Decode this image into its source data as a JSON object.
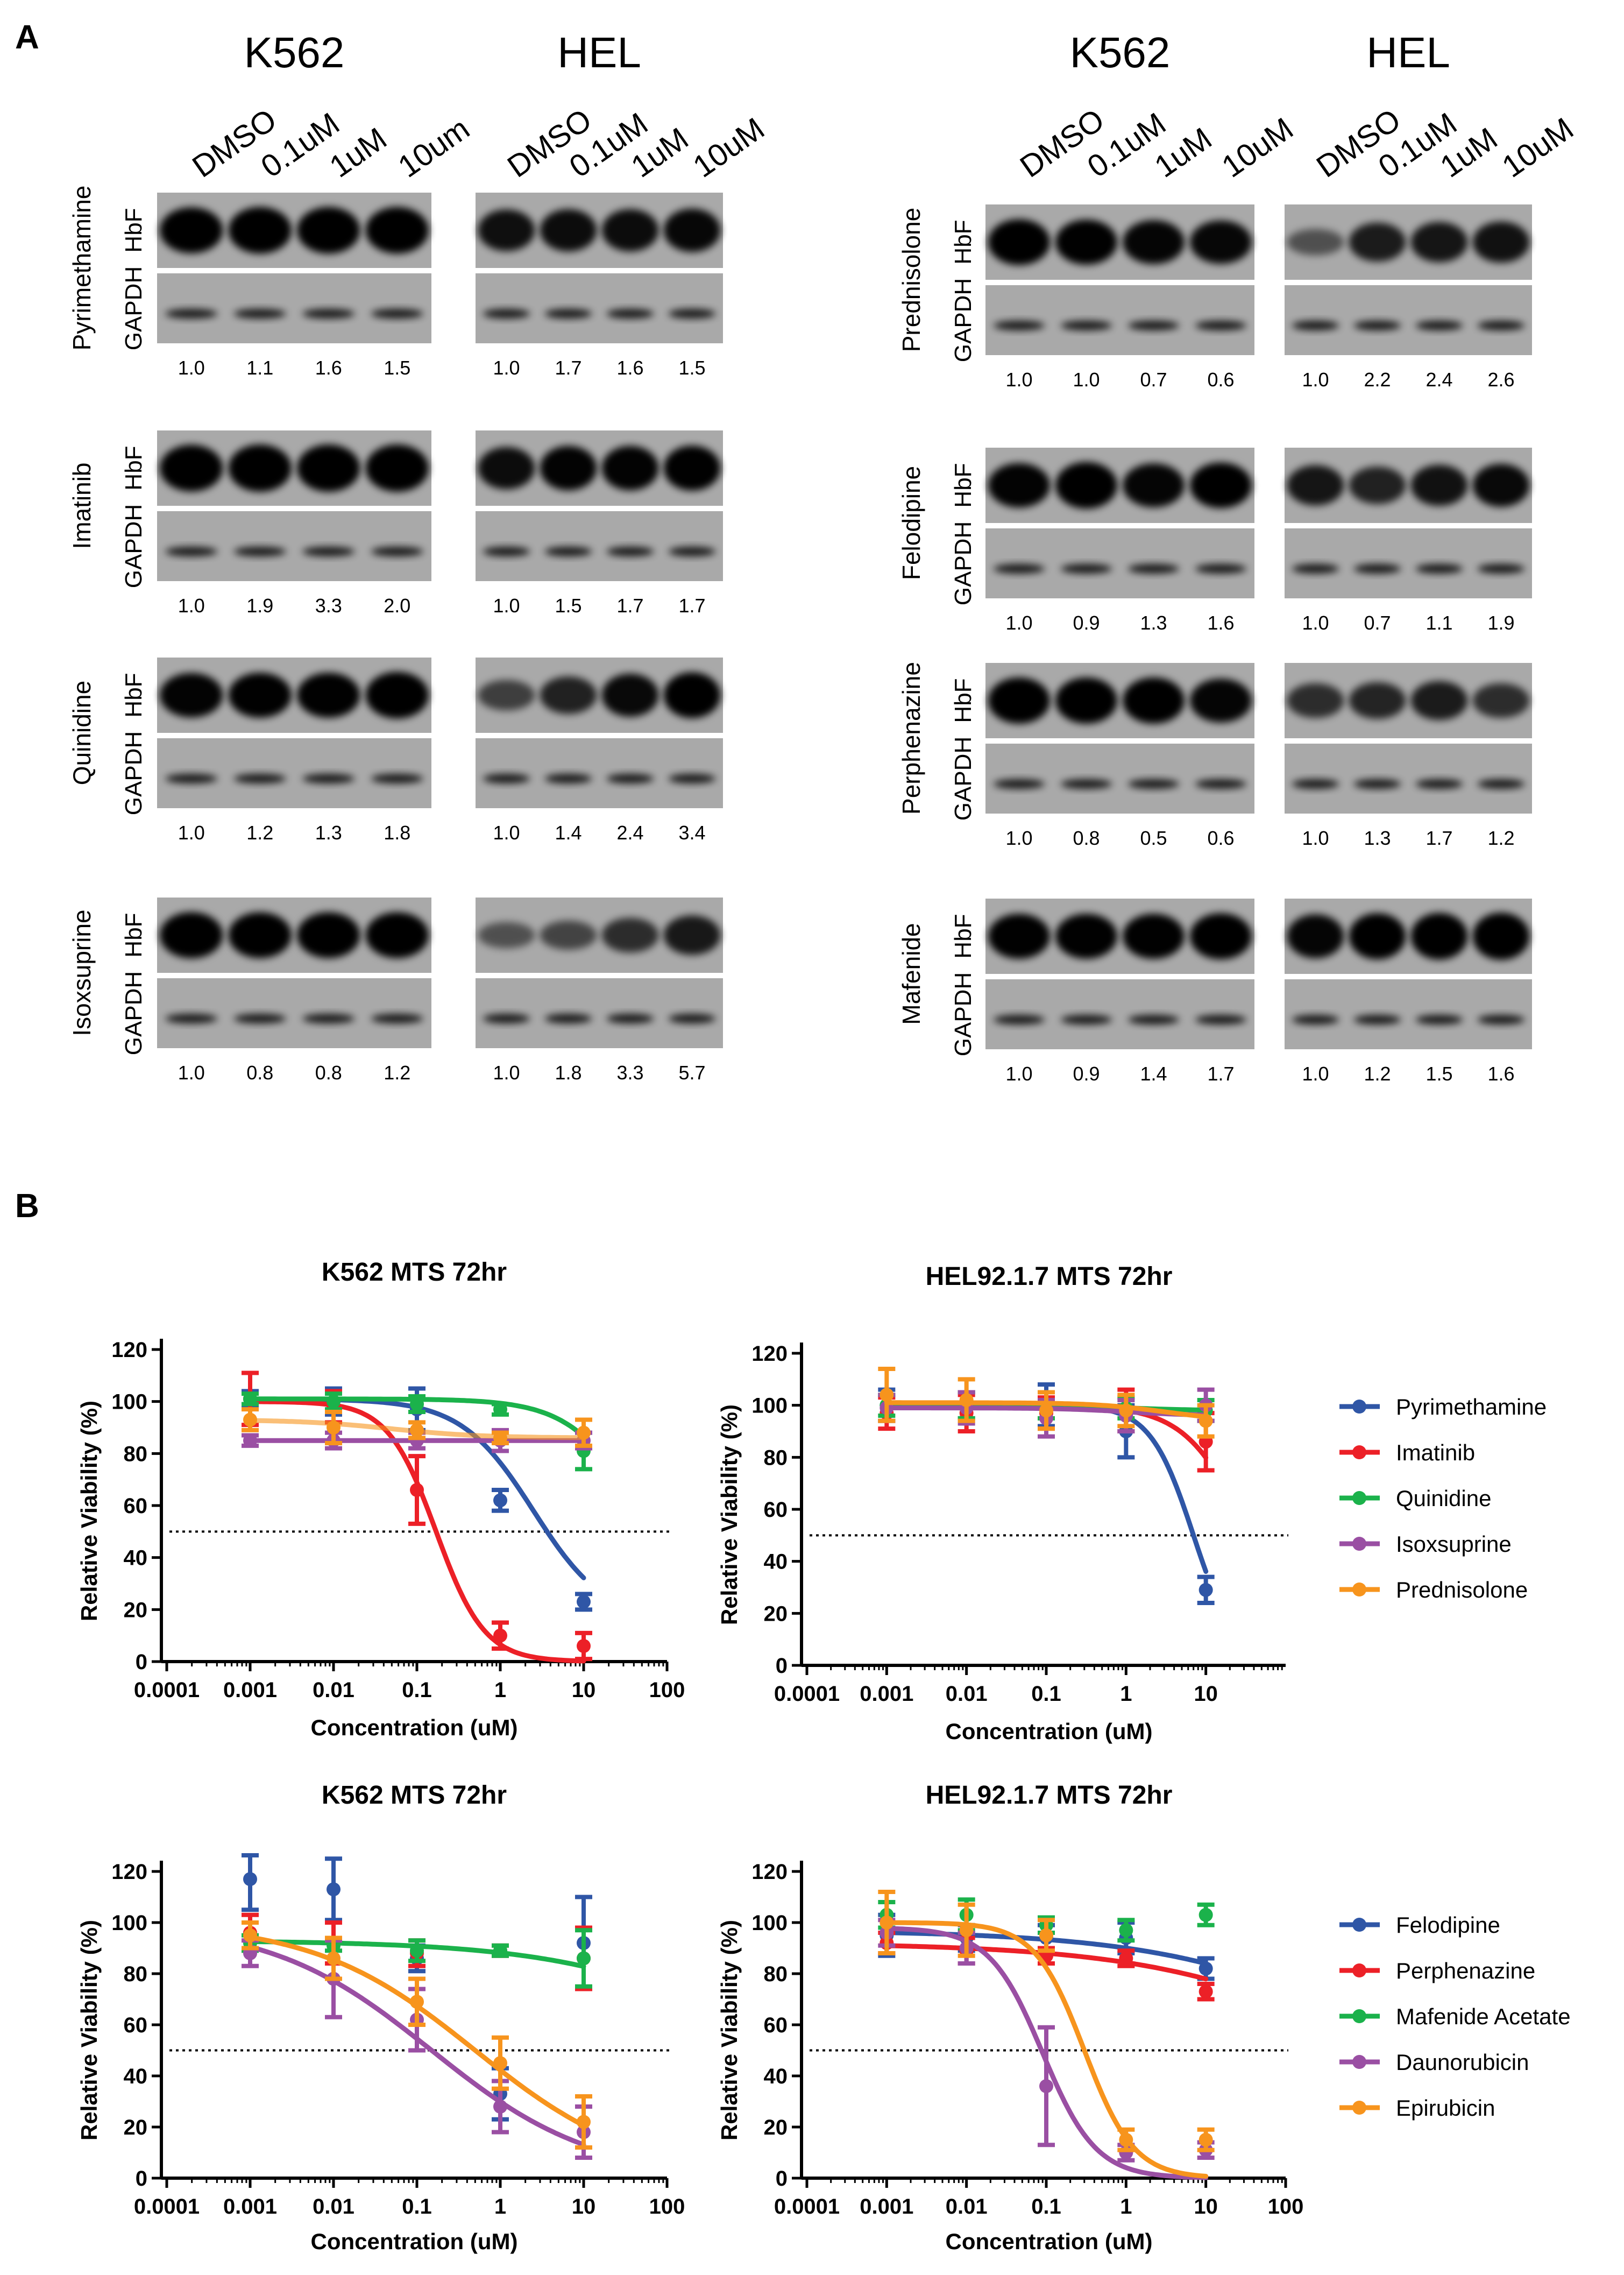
{
  "panel_a": {
    "label": "A",
    "band_labels": {
      "hbf": "HbF",
      "gapdh": "GAPDH"
    },
    "columns": [
      {
        "cell_lines": [
          {
            "name": "K562",
            "lanes": [
              "DMSO",
              "0.1uM",
              "1uM",
              "10um"
            ]
          },
          {
            "name": "HEL",
            "lanes": [
              "DMSO",
              "0.1uM",
              "1uM",
              "10uM"
            ]
          }
        ],
        "drugs": [
          {
            "name": "Pyrimethamine",
            "ratios": [
              [
                "1.0",
                "1.1",
                "1.6",
                "1.5"
              ],
              [
                "1.0",
                "1.7",
                "1.6",
                "1.5"
              ]
            ]
          },
          {
            "name": "Imatinib",
            "ratios": [
              [
                "1.0",
                "1.9",
                "3.3",
                "2.0"
              ],
              [
                "1.0",
                "1.5",
                "1.7",
                "1.7"
              ]
            ]
          },
          {
            "name": "Quinidine",
            "ratios": [
              [
                "1.0",
                "1.2",
                "1.3",
                "1.8"
              ],
              [
                "1.0",
                "1.4",
                "2.4",
                "3.4"
              ]
            ]
          },
          {
            "name": "Isoxsuprine",
            "ratios": [
              [
                "1.0",
                "0.8",
                "0.8",
                "1.2"
              ],
              [
                "1.0",
                "1.8",
                "3.3",
                "5.7"
              ]
            ]
          }
        ]
      },
      {
        "cell_lines": [
          {
            "name": "K562",
            "lanes": [
              "DMSO",
              "0.1uM",
              "1uM",
              "10uM"
            ]
          },
          {
            "name": "HEL",
            "lanes": [
              "DMSO",
              "0.1uM",
              "1uM",
              "10uM"
            ]
          }
        ],
        "drugs": [
          {
            "name": "Prednisolone",
            "ratios": [
              [
                "1.0",
                "1.0",
                "0.7",
                "0.6"
              ],
              [
                "1.0",
                "2.2",
                "2.4",
                "2.6"
              ]
            ]
          },
          {
            "name": "Felodipine",
            "ratios": [
              [
                "1.0",
                "0.9",
                "1.3",
                "1.6"
              ],
              [
                "1.0",
                "0.7",
                "1.1",
                "1.9"
              ]
            ]
          },
          {
            "name": "Perphenazine",
            "ratios": [
              [
                "1.0",
                "0.8",
                "0.5",
                "0.6"
              ],
              [
                "1.0",
                "1.3",
                "1.7",
                "1.2"
              ]
            ]
          },
          {
            "name": "Mafenide",
            "ratios": [
              [
                "1.0",
                "0.9",
                "1.4",
                "1.7"
              ],
              [
                "1.0",
                "1.2",
                "1.5",
                "1.6"
              ]
            ]
          }
        ]
      }
    ]
  },
  "panel_b": {
    "label": "B"
  },
  "chart_data": [
    {
      "type": "line",
      "title": "K562 MTS 72hr",
      "xlabel": "Concentration  (uM)",
      "ylabel": "Relative  Viability  (%)",
      "x_scale": "log",
      "xlim": [
        0.0001,
        100
      ],
      "ylim": [
        0,
        120
      ],
      "x_ticks": [
        0.0001,
        0.001,
        0.01,
        0.1,
        1,
        10,
        100
      ],
      "x_tick_labels": [
        "0.0001",
        "0.001",
        "0.01",
        "0.1",
        "1",
        "10",
        "100"
      ],
      "y_ticks": [
        0,
        20,
        40,
        60,
        80,
        100,
        120
      ],
      "threshold": 50,
      "x": [
        0.001,
        0.01,
        0.1,
        1,
        10
      ],
      "series": [
        {
          "name": "Pyrimethamine",
          "color": "#2f56a6",
          "values": [
            101,
            100,
            97,
            62,
            23
          ],
          "errors": [
            3,
            5,
            8,
            4,
            3
          ],
          "curve": {
            "top": 101,
            "bottom": 15,
            "ic50": 2.5,
            "hill": 1.0
          }
        },
        {
          "name": "Imatinib",
          "color": "#ec2027",
          "values": [
            101,
            98,
            66,
            10,
            6
          ],
          "errors": [
            10,
            6,
            13,
            5,
            5
          ],
          "curve": {
            "top": 100,
            "bottom": 0,
            "ic50": 0.17,
            "hill": 1.5
          }
        },
        {
          "name": "Quinidine",
          "color": "#1bb24b",
          "values": [
            101,
            100,
            99,
            97,
            81
          ],
          "errors": [
            2,
            3,
            3,
            2,
            7
          ],
          "curve": {
            "top": 101,
            "bottom": 0,
            "ic50": 60,
            "hill": 1.0
          }
        },
        {
          "name": "Isoxsuprine",
          "color": "#9a4fa3",
          "values": [
            85,
            85,
            85,
            85,
            85
          ],
          "errors": [
            2,
            3,
            3,
            4,
            3
          ],
          "curve": {
            "top": 85,
            "bottom": 85,
            "ic50": 1,
            "hill": 1.0
          }
        },
        {
          "name": "Prednisolone",
          "color": "#f7941d",
          "values": [
            93,
            90,
            89,
            86,
            88
          ],
          "errors": [
            4,
            6,
            3,
            2,
            5
          ],
          "curve": {
            "top": 93,
            "bottom": 86,
            "ic50": 0.05,
            "hill": 0.8
          }
        }
      ]
    },
    {
      "type": "line",
      "title": "HEL92.1.7 MTS 72hr",
      "xlabel": "Concentration  (uM)",
      "ylabel": "Relative  Viability  (%)",
      "x_scale": "log",
      "xlim": [
        0.0001,
        100
      ],
      "ylim": [
        0,
        120
      ],
      "x_ticks": [
        0.0001,
        0.001,
        0.01,
        0.1,
        1,
        10
      ],
      "x_tick_labels": [
        "0.0001",
        "0.001",
        "0.01",
        "0.1",
        "1",
        "10"
      ],
      "y_ticks": [
        0,
        20,
        40,
        60,
        80,
        100,
        120
      ],
      "threshold": 50,
      "legend": [
        "Pyrimethamine",
        "Imatinib",
        "Quinidine",
        "Isoxsuprine",
        "Prednisolone"
      ],
      "x": [
        0.001,
        0.01,
        0.1,
        1,
        10
      ],
      "series": [
        {
          "name": "Pyrimethamine",
          "color": "#2f56a6",
          "values": [
            100,
            100,
            100,
            90,
            29
          ],
          "errors": [
            6,
            5,
            8,
            10,
            5
          ],
          "curve": {
            "top": 100,
            "bottom": 0,
            "ic50": 7,
            "hill": 1.6
          }
        },
        {
          "name": "Imatinib",
          "color": "#ec2027",
          "values": [
            97,
            97,
            97,
            98,
            86
          ],
          "errors": [
            6,
            7,
            6,
            8,
            11
          ],
          "curve": {
            "top": 100,
            "bottom": 0,
            "ic50": 35,
            "hill": 1.1
          }
        },
        {
          "name": "Quinidine",
          "color": "#1bb24b",
          "values": [
            100,
            100,
            100,
            99,
            98
          ],
          "errors": [
            4,
            5,
            5,
            4,
            4
          ],
          "curve": {
            "top": 100,
            "bottom": 98,
            "ic50": 1,
            "hill": 1.0
          }
        },
        {
          "name": "Isoxsuprine",
          "color": "#9a4fa3",
          "values": [
            99,
            99,
            95,
            96,
            100
          ],
          "errors": [
            5,
            6,
            7,
            6,
            6
          ],
          "curve": {
            "top": 99,
            "bottom": 96,
            "ic50": 1,
            "hill": 1.0
          }
        },
        {
          "name": "Prednisolone",
          "color": "#f7941d",
          "values": [
            104,
            102,
            98,
            98,
            94
          ],
          "errors": [
            10,
            8,
            7,
            6,
            6
          ],
          "curve": {
            "top": 101,
            "bottom": 94,
            "ic50": 3,
            "hill": 1.0
          }
        }
      ]
    },
    {
      "type": "line",
      "title": "K562 MTS 72hr",
      "xlabel": "Concentration (uM)",
      "ylabel": "Relative  Viability  (%)",
      "x_scale": "log",
      "xlim": [
        0.0001,
        100
      ],
      "ylim": [
        0,
        120
      ],
      "x_ticks": [
        0.0001,
        0.001,
        0.01,
        0.1,
        1,
        10,
        100
      ],
      "x_tick_labels": [
        "0.0001",
        "0.001",
        "0.01",
        "0.1",
        "1",
        "10",
        "100"
      ],
      "y_ticks": [
        0,
        20,
        40,
        60,
        80,
        100,
        120
      ],
      "threshold": 50,
      "x": [
        0.001,
        0.01,
        0.1,
        1,
        10
      ],
      "series": [
        {
          "name": "Felodipine",
          "color": "#2f56a6",
          "values": [
            117,
            113,
            86,
            33,
            92
          ],
          "errors": [
            12,
            12,
            5,
            10,
            18
          ],
          "curve": null
        },
        {
          "name": "Perphenazine",
          "color": "#ec2027",
          "values": [
            96,
            92,
            88,
            89,
            86
          ],
          "errors": [
            7,
            8,
            5,
            2,
            12
          ],
          "curve": null
        },
        {
          "name": "Mafenide Acetate",
          "color": "#1bb24b",
          "values": [
            92,
            91,
            89,
            89,
            86
          ],
          "errors": [
            3,
            2,
            4,
            2,
            11
          ],
          "curve": {
            "top": 93,
            "bottom": 0,
            "ic50": 4000,
            "hill": 0.35
          }
        },
        {
          "name": "Daunorubicin",
          "color": "#9a4fa3",
          "values": [
            88,
            78,
            62,
            28,
            18
          ],
          "errors": [
            5,
            15,
            12,
            10,
            10
          ],
          "curve": {
            "top": 100,
            "bottom": 0,
            "ic50": 0.15,
            "hill": 0.45
          }
        },
        {
          "name": "Epirubicin",
          "color": "#f7941d",
          "values": [
            95,
            86,
            69,
            45,
            22
          ],
          "errors": [
            5,
            8,
            9,
            10,
            10
          ],
          "curve": {
            "top": 100,
            "bottom": 0,
            "ic50": 0.5,
            "hill": 0.45
          }
        }
      ]
    },
    {
      "type": "line",
      "title": "HEL92.1.7 MTS 72hr",
      "xlabel": "Concentration (uM)",
      "ylabel": "Relative  Viability  (%)",
      "x_scale": "log",
      "xlim": [
        0.0001,
        100
      ],
      "ylim": [
        0,
        120
      ],
      "x_ticks": [
        0.0001,
        0.001,
        0.01,
        0.1,
        1,
        10,
        100
      ],
      "x_tick_labels": [
        "0.0001",
        "0.001",
        "0.01",
        "0.1",
        "1",
        "10",
        "100"
      ],
      "y_ticks": [
        0,
        20,
        40,
        60,
        80,
        100,
        120
      ],
      "threshold": 50,
      "legend": [
        "Felodipine",
        "Perphenazine",
        "Mafenide Acetate",
        "Daunorubicin",
        "Epirubicin"
      ],
      "x": [
        0.001,
        0.01,
        0.1,
        1,
        10
      ],
      "series": [
        {
          "name": "Felodipine",
          "color": "#2f56a6",
          "values": [
            95,
            94,
            94,
            94,
            82
          ],
          "errors": [
            8,
            5,
            5,
            6,
            4
          ],
          "curve": {
            "top": 97,
            "bottom": 0,
            "ic50": 5000,
            "hill": 0.3
          }
        },
        {
          "name": "Perphenazine",
          "color": "#ec2027",
          "values": [
            92,
            89,
            87,
            86,
            73
          ],
          "errors": [
            4,
            5,
            3,
            3,
            3
          ],
          "curve": {
            "top": 92,
            "bottom": 0,
            "ic50": 3000,
            "hill": 0.3
          }
        },
        {
          "name": "Mafenide Acetate",
          "color": "#1bb24b",
          "values": [
            103,
            103,
            99,
            97,
            103
          ],
          "errors": [
            5,
            6,
            3,
            4,
            4
          ],
          "curve": null
        },
        {
          "name": "Daunorubicin",
          "color": "#9a4fa3",
          "values": [
            96,
            90,
            36,
            10,
            11
          ],
          "errors": [
            5,
            6,
            23,
            3,
            3
          ],
          "curve": {
            "top": 98,
            "bottom": 0,
            "ic50": 0.09,
            "hill": 1.3
          }
        },
        {
          "name": "Epirubicin",
          "color": "#f7941d",
          "values": [
            100,
            97,
            95,
            15,
            15
          ],
          "errors": [
            12,
            10,
            6,
            4,
            4
          ],
          "curve": {
            "top": 100,
            "bottom": 0,
            "ic50": 0.3,
            "hill": 1.4
          }
        }
      ]
    }
  ]
}
